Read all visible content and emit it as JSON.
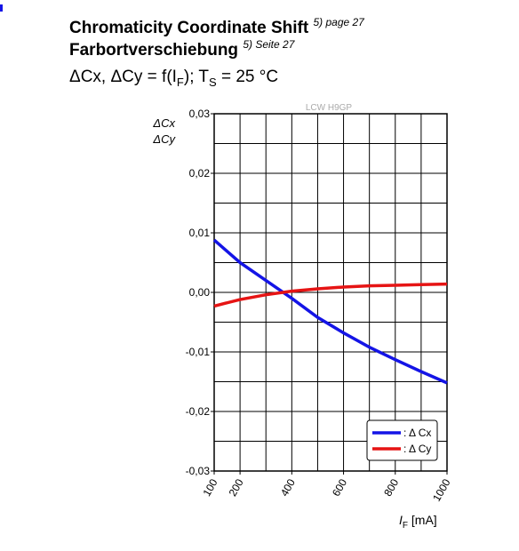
{
  "chart_data": {
    "type": "line",
    "title": "Chromaticity Coordinate Shift",
    "title_note": "5) page 27",
    "title_de": "Farbortverschiebung",
    "title_de_note": "5) Seite 27",
    "subtitle_parts": [
      "ΔCx, ΔCy = f(I",
      "F",
      "); T",
      "S",
      " = 25 °C"
    ],
    "watermark": "LCW H9GP",
    "y_label": [
      "ΔCx",
      "ΔCy"
    ],
    "x_label_parts": [
      "I",
      "F",
      " [mA]"
    ],
    "x": [
      100,
      200,
      300,
      400,
      500,
      600,
      700,
      800,
      900,
      1000
    ],
    "series": [
      {
        "name": ": Δ Cx",
        "color": "#1414e6",
        "values": [
          0.0088,
          0.005,
          0.002,
          -0.001,
          -0.0042,
          -0.0068,
          -0.0092,
          -0.0113,
          -0.0133,
          -0.0152
        ]
      },
      {
        "name": ": Δ Cy",
        "color": "#e61414",
        "values": [
          -0.0023,
          -0.0012,
          -0.0004,
          0.0002,
          0.0006,
          0.0009,
          0.0011,
          0.0012,
          0.0013,
          0.0014
        ]
      }
    ],
    "xlim": [
      100,
      1000
    ],
    "xticks": [
      100,
      200,
      400,
      600,
      800,
      1000
    ],
    "xgrid": [
      100,
      200,
      300,
      400,
      500,
      600,
      700,
      800,
      900,
      1000
    ],
    "ylim": [
      -0.03,
      0.03
    ],
    "yticks": [
      {
        "value": 0.03,
        "label": "0,03"
      },
      {
        "value": 0.02,
        "label": "0,02"
      },
      {
        "value": 0.01,
        "label": "0,01"
      },
      {
        "value": 0,
        "label": "0,00"
      },
      {
        "value": -0.01,
        "label": "-0,01"
      },
      {
        "value": -0.02,
        "label": "-0,02"
      },
      {
        "value": -0.03,
        "label": "-0,03"
      }
    ],
    "ygrid": [
      0.03,
      0.025,
      0.02,
      0.015,
      0.01,
      0.005,
      0,
      -0.005,
      -0.01,
      -0.015,
      -0.02,
      -0.025,
      -0.03
    ],
    "grid": true,
    "legend": "lower right"
  }
}
